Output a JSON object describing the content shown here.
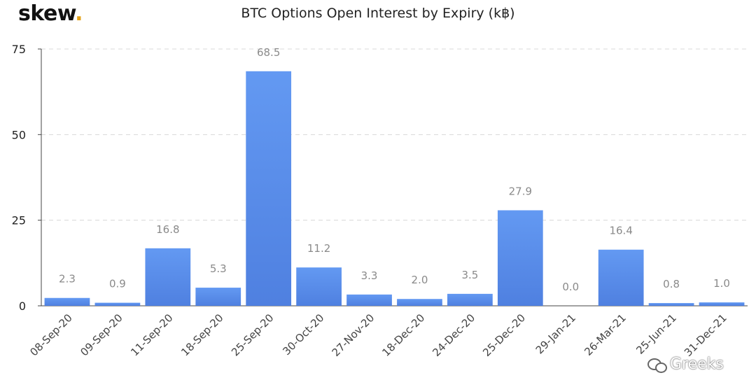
{
  "brand": {
    "name": "skew",
    "dot": "."
  },
  "chart_data": {
    "type": "bar",
    "title": "BTC Options Open Interest by Expiry (k฿)",
    "xlabel": "",
    "ylabel": "",
    "categories": [
      "08-Sep-20",
      "09-Sep-20",
      "11-Sep-20",
      "18-Sep-20",
      "25-Sep-20",
      "30-Oct-20",
      "27-Nov-20",
      "18-Dec-20",
      "24-Dec-20",
      "25-Dec-20",
      "29-Jan-21",
      "26-Mar-21",
      "25-Jun-21",
      "31-Dec-21"
    ],
    "values": [
      2.3,
      0.9,
      16.8,
      5.3,
      68.5,
      11.2,
      3.3,
      2.0,
      3.5,
      27.9,
      0.0,
      16.4,
      0.8,
      1.0
    ],
    "value_labels": [
      "2.3",
      "0.9",
      "16.8",
      "5.3",
      "68.5",
      "11.2",
      "3.3",
      "2.0",
      "3.5",
      "27.9",
      "0.0",
      "16.4",
      "0.8",
      "1.0"
    ],
    "yticks": [
      "0",
      "25",
      "50",
      "75"
    ],
    "ylim": [
      0,
      75
    ],
    "grid": "horizontal-dashed",
    "legend": "none",
    "bar_color_top": "#6399f2",
    "bar_color_bottom": "#4f80e0"
  },
  "watermark": {
    "text": "Greeks"
  }
}
